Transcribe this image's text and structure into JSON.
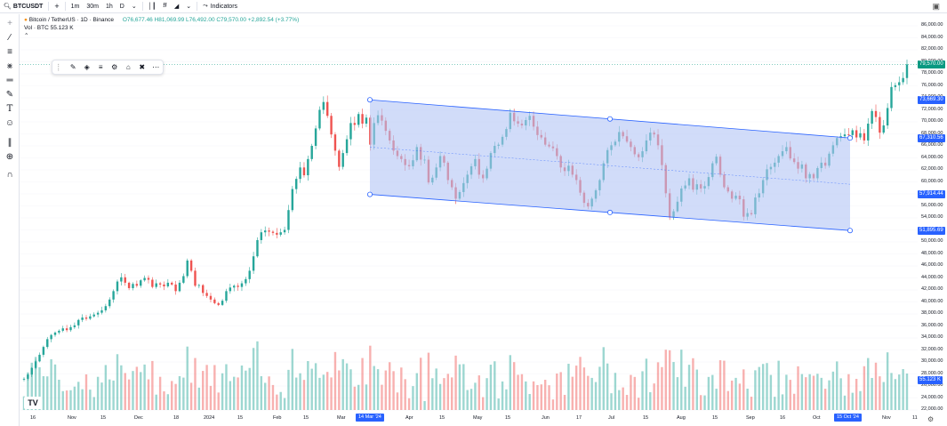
{
  "toolbar": {
    "symbol": "BTCUSDT",
    "add_icon": "+",
    "intervals": [
      "1m",
      "30m",
      "1h",
      "D"
    ],
    "indicators_label": "Indicators",
    "camera_icon": "camera-icon"
  },
  "legend": {
    "title": "Bitcoin / TetherUS · 1D · Binance",
    "ohlc": "O76,677.46 H81,069.99 L76,492.00 C79,570.00 +2,892.54 (+3.77%)",
    "volume": "Vol · BTC  55.123 K"
  },
  "price_axis": {
    "ticks": [
      "86,000.00",
      "84,000.00",
      "82,000.00",
      "80,000.00",
      "78,000.00",
      "76,000.00",
      "74,000.00",
      "72,000.00",
      "70,000.00",
      "68,000.00",
      "66,000.00",
      "64,000.00",
      "62,000.00",
      "60,000.00",
      "58,000.00",
      "56,000.00",
      "54,000.00",
      "52,000.00",
      "50,000.00",
      "48,000.00",
      "46,000.00",
      "44,000.00",
      "42,000.00",
      "40,000.00",
      "38,000.00",
      "36,000.00",
      "34,000.00",
      "32,000.00",
      "30,000.00",
      "28,000.00",
      "26,000.00",
      "24,000.00",
      "22,000.00"
    ],
    "current_price": "79,570.00",
    "channel_labels": [
      "73,669.30",
      "67,310.56",
      "57,914.44",
      "51,895.69"
    ],
    "volume_label": "55.123 K"
  },
  "time_axis": {
    "ticks": [
      {
        "label": "16"
      },
      {
        "label": "Nov"
      },
      {
        "label": "15"
      },
      {
        "label": "Dec"
      },
      {
        "label": "18"
      },
      {
        "label": "2024"
      },
      {
        "label": "15"
      },
      {
        "label": "Feb"
      },
      {
        "label": "15"
      },
      {
        "label": "Mar"
      },
      {
        "label": "Apr"
      },
      {
        "label": "15"
      },
      {
        "label": "May"
      },
      {
        "label": "15"
      },
      {
        "label": "Jun"
      },
      {
        "label": "17"
      },
      {
        "label": "Jul"
      },
      {
        "label": "15"
      },
      {
        "label": "Aug"
      },
      {
        "label": "15"
      },
      {
        "label": "Sep"
      },
      {
        "label": "16"
      },
      {
        "label": "Oct"
      },
      {
        "label": "Nov"
      },
      {
        "label": "11"
      }
    ],
    "range_start": "14 Mar '24",
    "range_end": "15 Oct '24"
  },
  "colors": {
    "up": "#26a69a",
    "down": "#ef5350",
    "channel_fill": "#b3c4f5",
    "channel_line": "#2962ff",
    "price_tag": "#089981"
  },
  "chart_data": {
    "type": "candlestick",
    "title": "Bitcoin / TetherUS · 1D · Binance",
    "ylim": [
      21000,
      87000
    ],
    "closes": [
      27200,
      27900,
      29000,
      30100,
      31200,
      32500,
      33800,
      34500,
      34900,
      35200,
      35600,
      35300,
      35800,
      36100,
      37000,
      37400,
      37200,
      37600,
      37900,
      38200,
      38600,
      39300,
      40400,
      41800,
      43400,
      44100,
      43200,
      42300,
      43000,
      42700,
      43600,
      44000,
      43700,
      42500,
      43100,
      42900,
      42600,
      43200,
      42900,
      41800,
      43200,
      44300,
      46900,
      45200,
      42700,
      42800,
      41500,
      41000,
      40400,
      39800,
      39500,
      40200,
      41800,
      42400,
      42700,
      42500,
      43100,
      43800,
      45200,
      47600,
      50300,
      51600,
      51900,
      51700,
      51500,
      51200,
      51600,
      52000,
      55300,
      58800,
      60500,
      62400,
      61100,
      63800,
      66000,
      68900,
      72000,
      73300,
      71000,
      67900,
      65200,
      62500,
      64800,
      67100,
      69800,
      69500,
      71300,
      69700,
      70700,
      66200,
      69800,
      71100,
      70200,
      68500,
      66900,
      65200,
      64300,
      63800,
      62800,
      62600,
      63600,
      65800,
      63700,
      63700,
      59900,
      60700,
      62400,
      64300,
      63200,
      60300,
      59100,
      57200,
      58300,
      59800,
      61200,
      62600,
      63800,
      61200,
      60600,
      62200,
      64800,
      66000,
      66200,
      67500,
      68800,
      71500,
      70100,
      69700,
      69400,
      70300,
      71000,
      69200,
      67800,
      67400,
      66200,
      65900,
      65600,
      64300,
      62400,
      61800,
      62700,
      61200,
      60300,
      58200,
      56500,
      55900,
      57200,
      58600,
      60300,
      63100,
      65300,
      66100,
      66700,
      68300,
      67600,
      66700,
      65800,
      64600,
      64100,
      65100,
      66900,
      68200,
      67900,
      66100,
      62800,
      58100,
      54100,
      55100,
      56700,
      58900,
      59400,
      60600,
      58700,
      59600,
      58900,
      59300,
      60800,
      63100,
      64200,
      61200,
      59100,
      58400,
      57200,
      57700,
      57100,
      54200,
      54800,
      54600,
      57400,
      58100,
      60300,
      62100,
      62500,
      63200,
      64300,
      65100,
      65800,
      63900,
      63300,
      62200,
      62900,
      60600,
      61300,
      60600,
      62300,
      63200,
      62700,
      64700,
      66100,
      67300,
      67600,
      67900,
      67800,
      68600,
      67400,
      68100,
      66900,
      69700,
      71800,
      70800,
      68200,
      69400,
      72300,
      75800,
      76100,
      76600,
      77300,
      79570
    ],
    "channel": {
      "upper_start": 73669.3,
      "upper_end": 67310.56,
      "lower_start": 57914.44,
      "lower_end": 51895.69,
      "start_date": "14 Mar '24",
      "end_date": "15 Oct '24"
    },
    "last_price": 79570.0,
    "volume_last": "55.123 K"
  }
}
